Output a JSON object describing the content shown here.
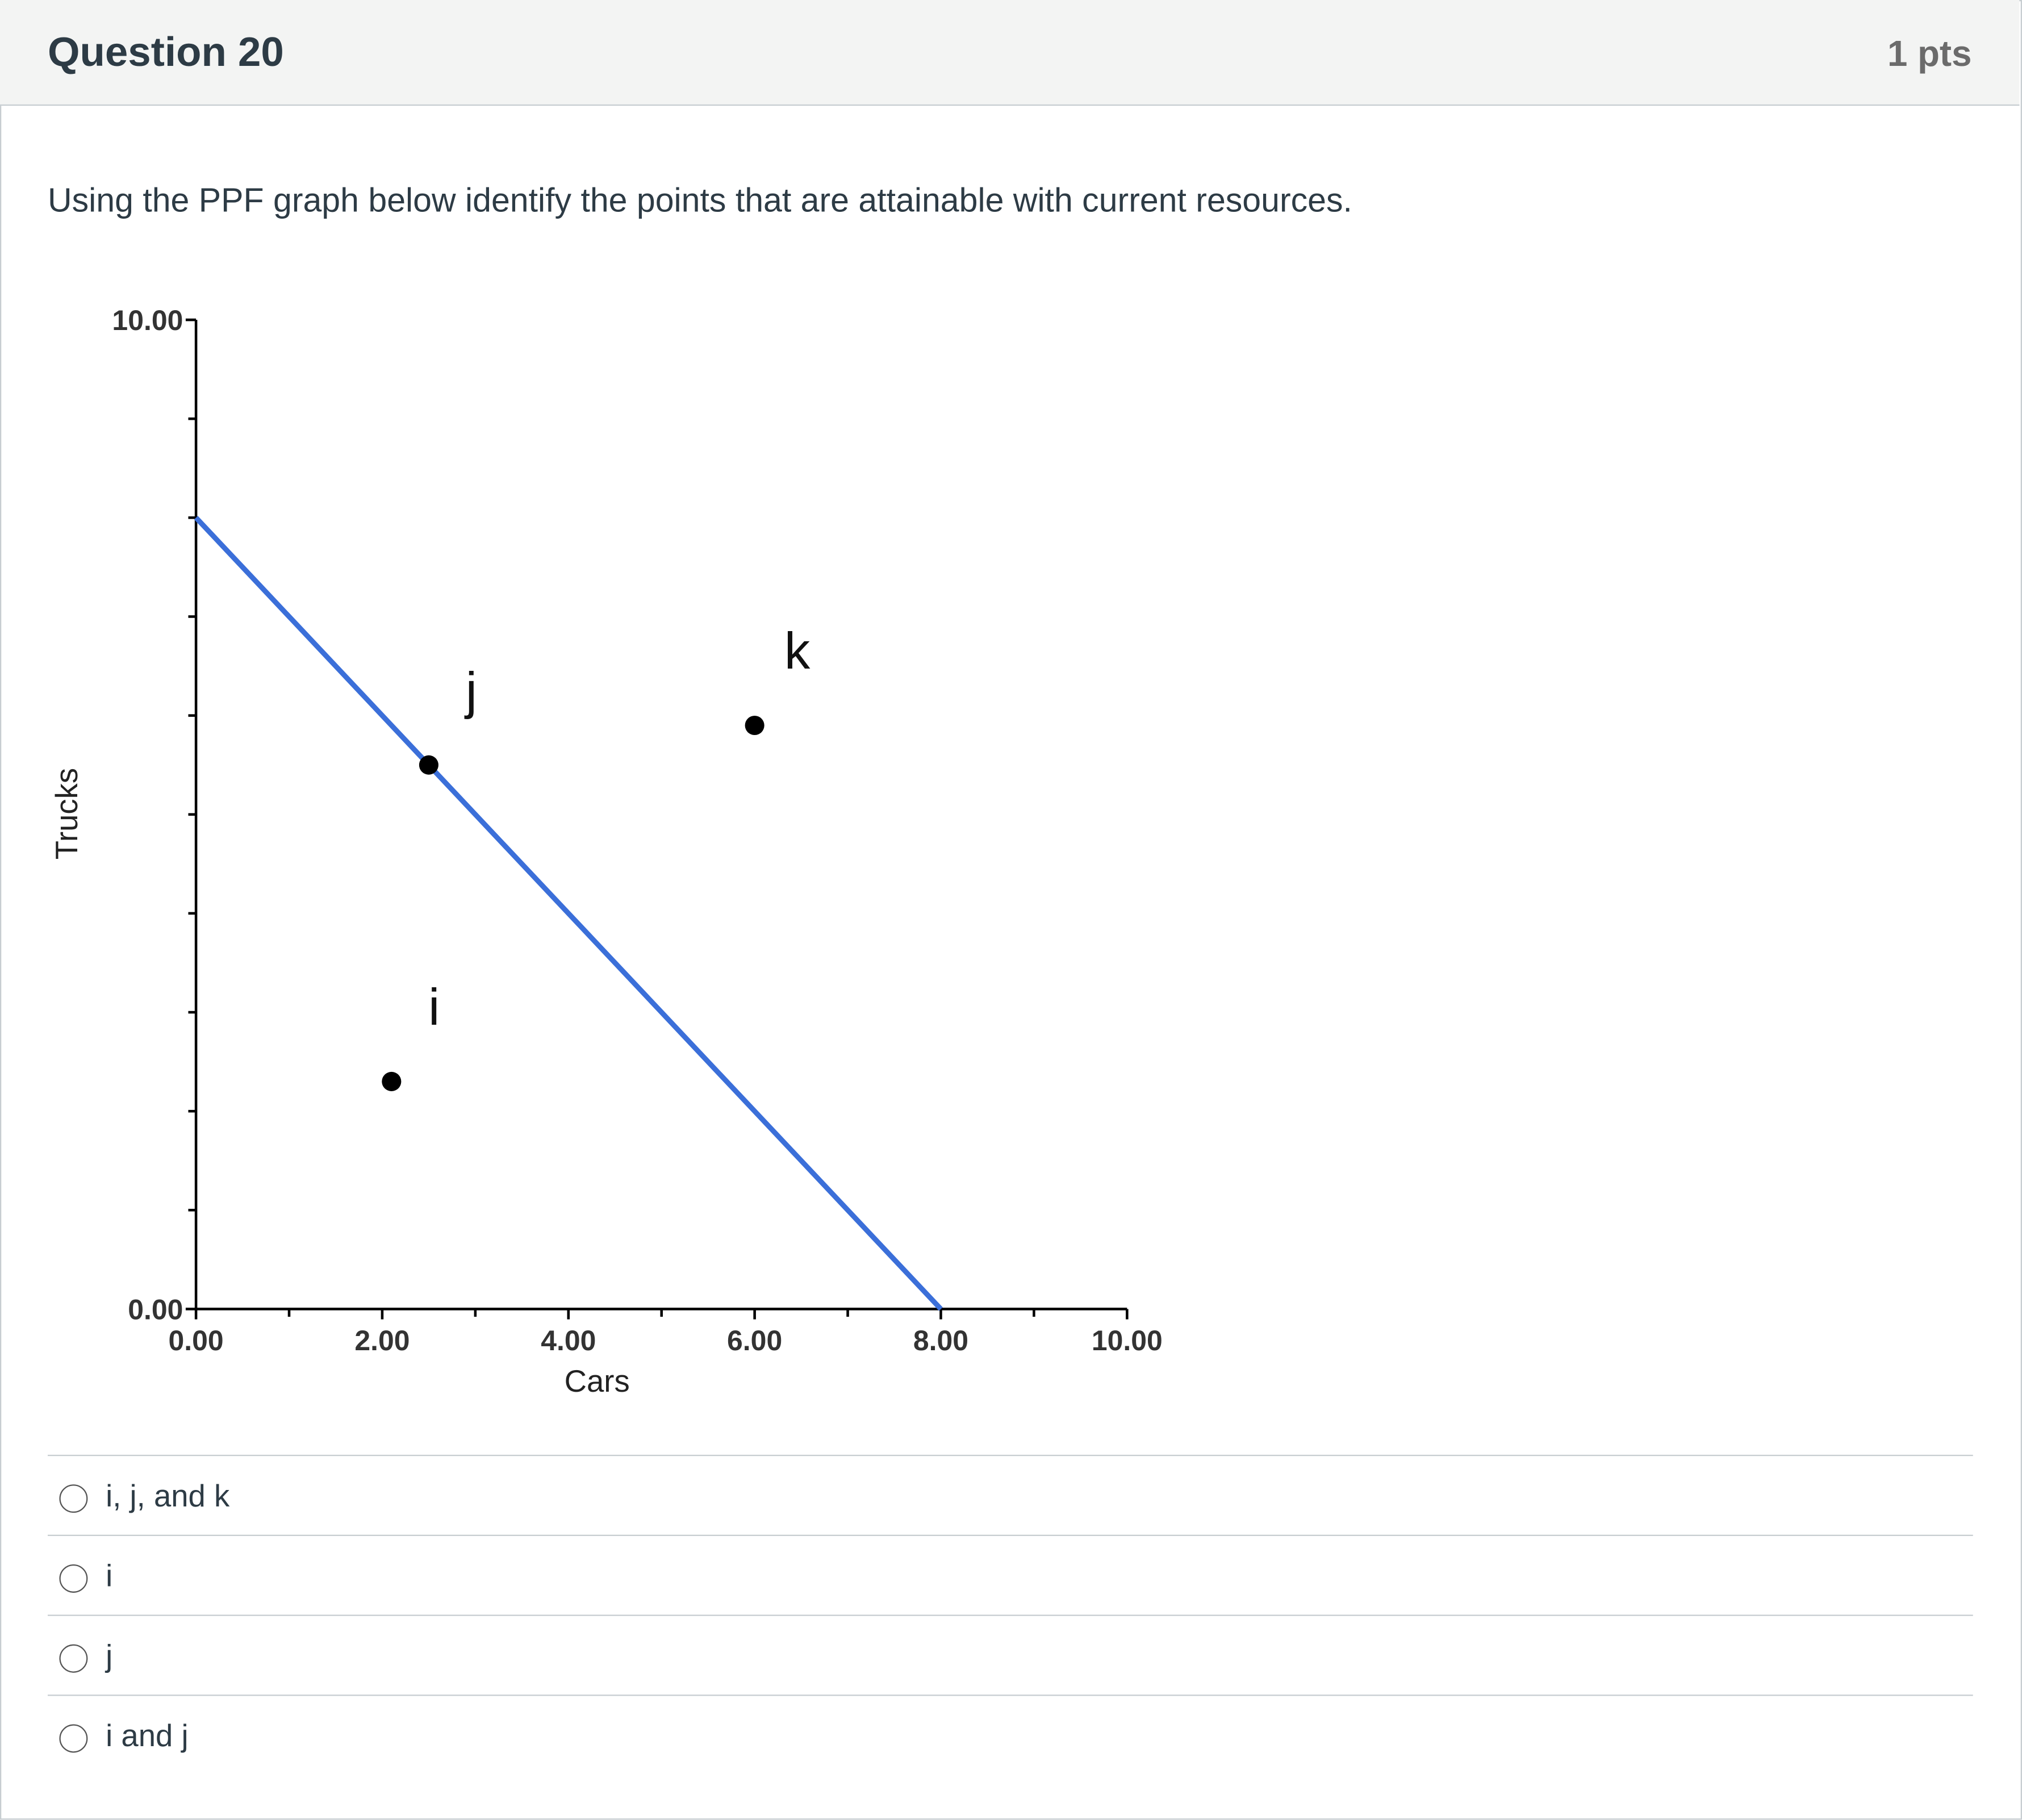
{
  "header": {
    "title": "Question 20",
    "points": "1 pts"
  },
  "question": "Using the PPF graph below identify the points that are attainable with current resources.",
  "chart_data": {
    "type": "line",
    "x_label": "Cars",
    "y_label": "Trucks",
    "xlim": [
      0,
      10
    ],
    "ylim": [
      0,
      10
    ],
    "xticks": [
      {
        "value": 0,
        "label": "0.00"
      },
      {
        "value": 2,
        "label": "2.00"
      },
      {
        "value": 4,
        "label": "4.00"
      },
      {
        "value": 6,
        "label": "6.00"
      },
      {
        "value": 8,
        "label": "8.00"
      },
      {
        "value": 10,
        "label": "10.00"
      }
    ],
    "xminorticks": [
      1,
      3,
      5,
      7,
      9
    ],
    "yticks": [
      {
        "value": 0,
        "label": "0.00"
      },
      {
        "value": 10,
        "label": "10.00"
      }
    ],
    "yminorticks": [
      1,
      2,
      3,
      4,
      5,
      6,
      7,
      8,
      9
    ],
    "series": [
      {
        "type": "line",
        "color": "#3b6fd9",
        "x": [
          0,
          8
        ],
        "values": [
          8,
          0
        ]
      },
      {
        "type": "scatter",
        "color": "#000000",
        "x": [
          2.1,
          2.5,
          6
        ],
        "values": [
          2.3,
          5.5,
          5.9
        ],
        "labels": [
          "i",
          "j",
          "k"
        ]
      }
    ]
  },
  "options": [
    "i, j, and k",
    "i",
    "j",
    "i and j"
  ]
}
